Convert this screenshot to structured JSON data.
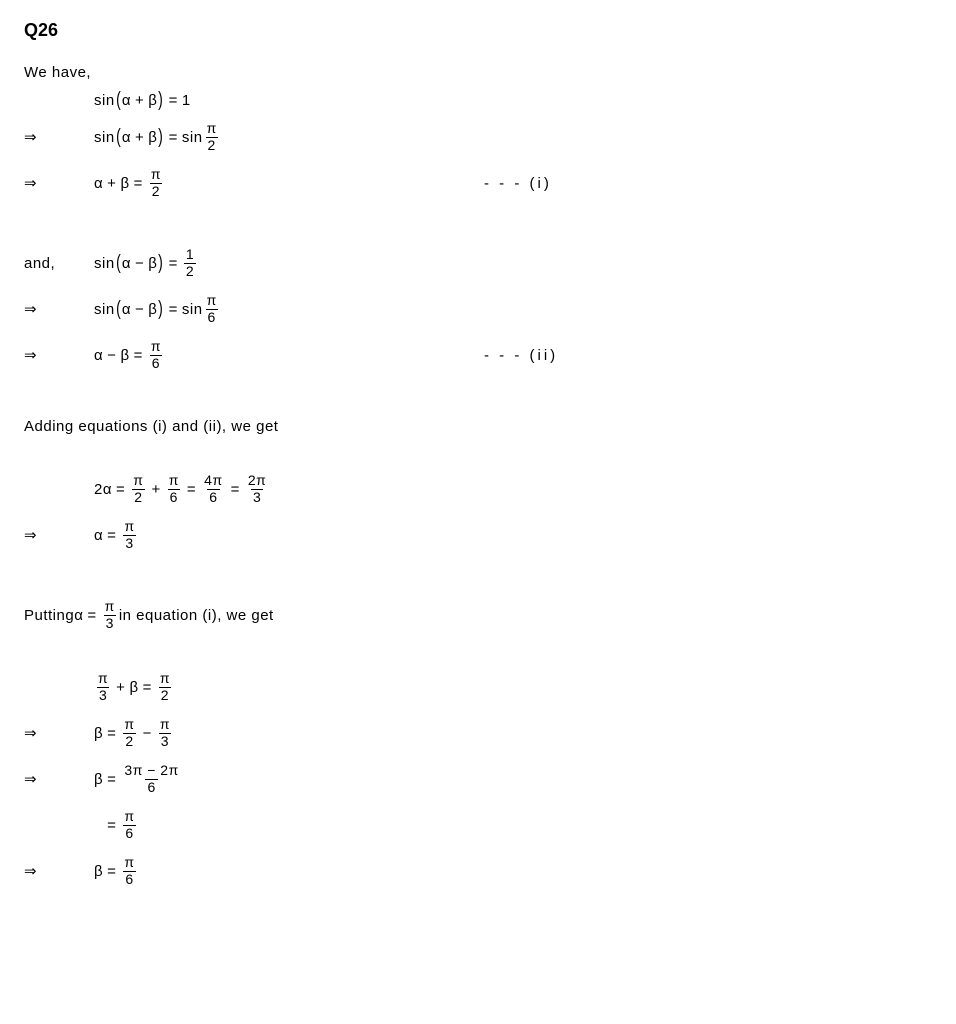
{
  "title": "Q26",
  "text": {
    "we_have": "We have,",
    "and": "and,",
    "adding": "Adding equations (i) and (ii), we get",
    "putting_prefix": "Putting ",
    "putting_suffix": " in equation (i), we get"
  },
  "glyph": {
    "arrow": "⇒",
    "alpha": "α",
    "beta": "β",
    "pi": "π",
    "plus": "+",
    "minus": "−",
    "equals": "=",
    "sin": "sin",
    "two": "2",
    "one": "1",
    "three": "3",
    "four": "4",
    "six": "6",
    "twoalpha": "2α",
    "half_num": "1",
    "half_den": "2"
  },
  "markers": {
    "i": "- - - (i)",
    "ii": "- - - (ii)"
  },
  "frac": {
    "pi_2_num": "π",
    "pi_2_den": "2",
    "pi_6_num": "π",
    "pi_6_den": "6",
    "pi_3_num": "π",
    "pi_3_den": "3",
    "four_pi_6_num": "4π",
    "four_pi_6_den": "6",
    "two_pi_3_num": "2π",
    "two_pi_3_den": "3",
    "three_minus_two_num": "3π − 2π",
    "three_minus_two_den": "6"
  },
  "style": {
    "background_color": "#ffffff",
    "text_color": "#000000",
    "title_fontsize": 18,
    "body_fontsize": 15,
    "fraction_rule_color": "#000000"
  }
}
